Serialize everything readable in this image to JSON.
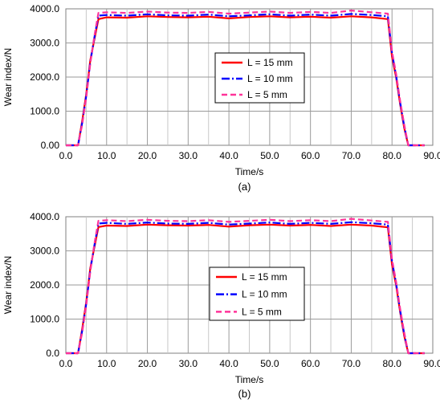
{
  "chart_data": [
    {
      "type": "line",
      "caption": "(a)",
      "xlabel": "Time/s",
      "ylabel": "Wear index/N",
      "xlim": [
        0,
        90
      ],
      "ylim": [
        0,
        4000
      ],
      "x_ticks": [
        "0.0",
        "10.0",
        "20.0",
        "30.0",
        "40.0",
        "50.0",
        "60.0",
        "70.0",
        "80.0",
        "90.0"
      ],
      "y_ticks": [
        "0.00",
        "1000.0",
        "2000.0",
        "3000.0",
        "4000.0"
      ],
      "grid": true,
      "legend_position": "center-right",
      "series": [
        {
          "name": "L = 15 mm",
          "color": "#ff0000",
          "dash": "solid",
          "x": [
            0,
            3,
            4,
            5,
            6,
            7,
            8,
            10,
            15,
            20,
            25,
            30,
            35,
            40,
            45,
            50,
            55,
            60,
            65,
            70,
            75,
            79,
            80,
            81,
            82,
            83,
            84,
            85,
            88
          ],
          "y": [
            0,
            0,
            700,
            1500,
            2500,
            3100,
            3700,
            3750,
            3740,
            3780,
            3760,
            3750,
            3770,
            3720,
            3760,
            3780,
            3750,
            3770,
            3740,
            3780,
            3750,
            3700,
            2600,
            2000,
            1200,
            500,
            0,
            0,
            0
          ]
        },
        {
          "name": "L = 10 mm",
          "color": "#0000ff",
          "dash": "dashdot",
          "x": [
            0,
            3,
            4,
            5,
            6,
            7,
            8,
            10,
            15,
            20,
            25,
            30,
            35,
            40,
            45,
            50,
            55,
            60,
            65,
            70,
            75,
            79,
            80,
            81,
            82,
            83,
            84,
            85,
            88
          ],
          "y": [
            0,
            0,
            650,
            1450,
            2450,
            3150,
            3800,
            3820,
            3800,
            3840,
            3810,
            3800,
            3830,
            3780,
            3810,
            3840,
            3800,
            3830,
            3800,
            3850,
            3820,
            3780,
            2700,
            2050,
            1250,
            550,
            0,
            0,
            0
          ]
        },
        {
          "name": "L = 5 mm",
          "color": "#ff3399",
          "dash": "dashed",
          "x": [
            0,
            3,
            4,
            5,
            6,
            7,
            8,
            10,
            15,
            20,
            25,
            30,
            35,
            40,
            45,
            50,
            55,
            60,
            65,
            70,
            75,
            79,
            80,
            81,
            82,
            83,
            84,
            85,
            88
          ],
          "y": [
            0,
            0,
            600,
            1400,
            2400,
            3200,
            3880,
            3900,
            3880,
            3920,
            3890,
            3880,
            3910,
            3860,
            3890,
            3920,
            3880,
            3910,
            3880,
            3950,
            3900,
            3860,
            2750,
            2100,
            1300,
            600,
            0,
            0,
            0
          ]
        }
      ]
    },
    {
      "type": "line",
      "caption": "(b)",
      "xlabel": "Time/s",
      "ylabel": "Wear index/N",
      "xlim": [
        0,
        90
      ],
      "ylim": [
        0,
        4000
      ],
      "x_ticks": [
        "0.0",
        "10.0",
        "20.0",
        "30.0",
        "40.0",
        "50.0",
        "60.0",
        "70.0",
        "80.0",
        "90.0"
      ],
      "y_ticks": [
        "0.0",
        "1000.0",
        "2000.0",
        "3000.0",
        "4000.0"
      ],
      "grid": true,
      "legend_position": "center-right",
      "series": [
        {
          "name": "L = 15 mm",
          "color": "#ff0000",
          "dash": "solid",
          "x": [
            0,
            3,
            4,
            5,
            6,
            7,
            8,
            10,
            15,
            20,
            25,
            30,
            35,
            40,
            45,
            50,
            55,
            60,
            65,
            70,
            75,
            79,
            80,
            81,
            82,
            83,
            84,
            85,
            88
          ],
          "y": [
            0,
            0,
            700,
            1500,
            2500,
            3100,
            3700,
            3740,
            3730,
            3770,
            3750,
            3740,
            3760,
            3710,
            3750,
            3770,
            3740,
            3760,
            3730,
            3770,
            3740,
            3690,
            2600,
            2000,
            1200,
            500,
            0,
            0,
            0
          ]
        },
        {
          "name": "L = 10 mm",
          "color": "#0000ff",
          "dash": "dashdot",
          "x": [
            0,
            3,
            4,
            5,
            6,
            7,
            8,
            10,
            15,
            20,
            25,
            30,
            35,
            40,
            45,
            50,
            55,
            60,
            65,
            70,
            75,
            79,
            80,
            81,
            82,
            83,
            84,
            85,
            88
          ],
          "y": [
            0,
            0,
            650,
            1450,
            2450,
            3150,
            3800,
            3820,
            3790,
            3830,
            3800,
            3790,
            3820,
            3770,
            3800,
            3830,
            3790,
            3820,
            3790,
            3840,
            3810,
            3770,
            2700,
            2050,
            1250,
            550,
            0,
            0,
            0
          ]
        },
        {
          "name": "L = 5 mm",
          "color": "#ff3399",
          "dash": "dashed",
          "x": [
            0,
            3,
            4,
            5,
            6,
            7,
            8,
            10,
            15,
            20,
            25,
            30,
            35,
            40,
            45,
            50,
            55,
            60,
            65,
            70,
            75,
            79,
            80,
            81,
            82,
            83,
            84,
            85,
            88
          ],
          "y": [
            0,
            0,
            600,
            1400,
            2400,
            3200,
            3880,
            3900,
            3870,
            3910,
            3880,
            3870,
            3900,
            3850,
            3880,
            3910,
            3870,
            3900,
            3870,
            3940,
            3890,
            3850,
            2750,
            2100,
            1300,
            600,
            0,
            0,
            0
          ]
        }
      ]
    }
  ]
}
